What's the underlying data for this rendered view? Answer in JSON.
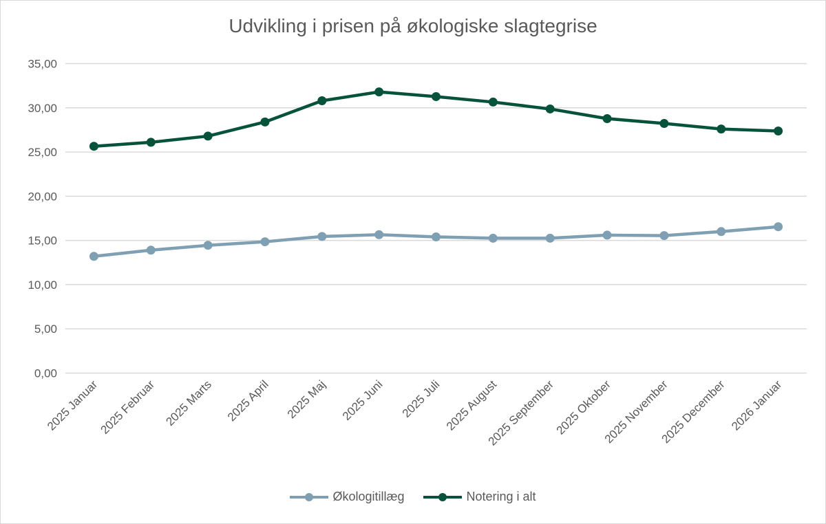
{
  "chart_data": {
    "type": "line",
    "title": "Udvikling i prisen på økologiske slagtegrise",
    "categories": [
      "2025 Januar",
      "2025 Februar",
      "2025 Marts",
      "2025 April",
      "2025 Maj",
      "2025 Juni",
      "2025 Juli",
      "2025 August",
      "2025 September",
      "2025 Oktober",
      "2025 November",
      "2025 December",
      "2026 Januar"
    ],
    "series": [
      {
        "name": "Økologitillæg",
        "color": "#7f9fb3",
        "values": [
          13.2,
          13.9,
          14.45,
          14.85,
          15.45,
          15.65,
          15.4,
          15.25,
          15.25,
          15.6,
          15.55,
          16.0,
          16.55
        ]
      },
      {
        "name": "Notering i alt",
        "color": "#07523a",
        "values": [
          25.65,
          26.1,
          26.8,
          28.4,
          30.8,
          31.8,
          31.27,
          30.65,
          29.87,
          28.78,
          28.23,
          27.6,
          27.38
        ]
      }
    ],
    "ylim": [
      0,
      35
    ],
    "yticks": [
      "0,00",
      "5,00",
      "10,00",
      "15,00",
      "20,00",
      "25,00",
      "30,00",
      "35,00"
    ],
    "xlabel": "",
    "ylabel": "",
    "grid": true,
    "legend": "bottom"
  }
}
